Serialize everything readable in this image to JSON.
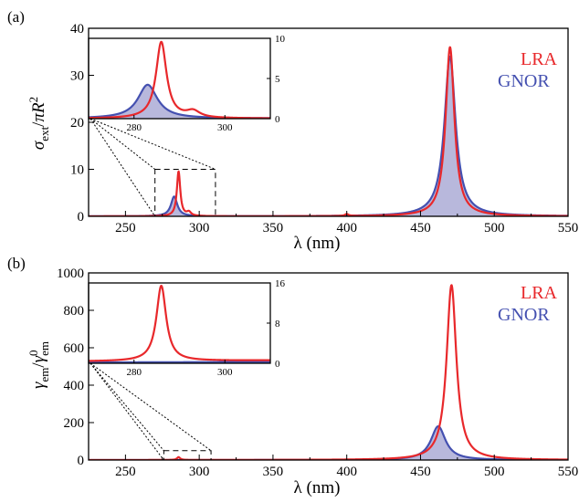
{
  "chart_data": [
    {
      "type": "line",
      "panel_label": "(a)",
      "xlabel": "λ (nm)",
      "ylabel": {
        "main": "σ",
        "sub": "ext",
        "sep": "/",
        "rest": "πR",
        "sup": "2"
      },
      "xlim": [
        225,
        550
      ],
      "ylim": [
        0,
        40
      ],
      "xticks": [
        250,
        300,
        350,
        400,
        450,
        500,
        550
      ],
      "yticks": [
        0,
        10,
        20,
        30,
        40
      ],
      "legend": [
        "LRA",
        "GNOR"
      ],
      "series": [
        {
          "name": "LRA",
          "color": "#e8282b",
          "fill": false,
          "peaks": [
            [
              286,
              9.5,
              1.4
            ],
            [
              293,
              0.8,
              1.8
            ],
            [
              400,
              0.4,
              1.5
            ],
            [
              470,
              36,
              3.6
            ]
          ]
        },
        {
          "name": "GNOR",
          "color": "#4450b0",
          "fill": true,
          "peaks": [
            [
              283,
              4.2,
              2.6
            ],
            [
              470,
              34,
              4.6
            ]
          ]
        }
      ],
      "dashed_box": {
        "x": [
          270,
          311
        ],
        "y": [
          0,
          10
        ]
      },
      "inset": {
        "xlim": [
          270,
          310
        ],
        "ylim": [
          0,
          10
        ],
        "xticks": [
          280,
          300
        ],
        "yticks": [
          0,
          5,
          10
        ]
      }
    },
    {
      "type": "line",
      "panel_label": "(b)",
      "xlabel": "λ (nm)",
      "ylabel": {
        "main": "γ",
        "sub": "em",
        "sep": "/",
        "rest": "γ",
        "sub2": "em",
        "sup": "0"
      },
      "xlim": [
        225,
        550
      ],
      "ylim": [
        0,
        1000
      ],
      "xticks": [
        250,
        300,
        350,
        400,
        450,
        500,
        550
      ],
      "yticks": [
        0,
        200,
        400,
        600,
        800,
        1000
      ],
      "legend": [
        "LRA",
        "GNOR"
      ],
      "series": [
        {
          "name": "LRA",
          "color": "#e8282b",
          "fill": false,
          "peaks": [
            [
              286,
              15,
              1.3
            ],
            [
              471,
              935,
              4.0
            ]
          ]
        },
        {
          "name": "GNOR",
          "color": "#4450b0",
          "fill": true,
          "peaks": [
            [
              462,
              180,
              6.0
            ]
          ]
        }
      ],
      "dashed_box": {
        "x": [
          276,
          308
        ],
        "y": [
          0,
          50
        ]
      },
      "inset": {
        "xlim": [
          270,
          310
        ],
        "ylim": [
          0,
          16
        ],
        "xticks": [
          280,
          300
        ],
        "yticks": [
          0,
          8,
          16
        ]
      }
    }
  ],
  "colors": {
    "lra": "#e8282b",
    "gnor": "#4450b0",
    "gnor_fill": "#b8b8dc"
  }
}
